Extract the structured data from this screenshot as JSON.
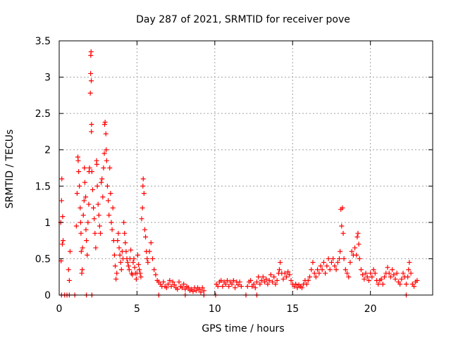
{
  "chart_data": {
    "type": "scatter",
    "title": "Day 287 of 2021, SRMTID for receiver pove",
    "xlabel": "GPS time / hours",
    "ylabel": "SRMTID / TECUs",
    "xlim": [
      0,
      24
    ],
    "ylim": [
      0,
      3.5
    ],
    "xticks": [
      {
        "value": 0,
        "label": "0"
      },
      {
        "value": 5,
        "label": "5"
      },
      {
        "value": 10,
        "label": "10"
      },
      {
        "value": 15,
        "label": "15"
      },
      {
        "value": 20,
        "label": "20"
      }
    ],
    "yticks": [
      {
        "value": 0,
        "label": "0"
      },
      {
        "value": 0.5,
        "label": "0.5"
      },
      {
        "value": 1,
        "label": "1"
      },
      {
        "value": 1.5,
        "label": "1.5"
      },
      {
        "value": 2,
        "label": "2"
      },
      {
        "value": 2.5,
        "label": "2.5"
      },
      {
        "value": 3,
        "label": "3"
      },
      {
        "value": 3.5,
        "label": "3.5"
      }
    ],
    "grid": true,
    "marker": "plus",
    "color": "#ff0000",
    "series": [
      {
        "name": "SRMTID",
        "points": [
          [
            0.1,
            1.0
          ],
          [
            0.12,
            0.47
          ],
          [
            0.15,
            1.3
          ],
          [
            0.17,
            1.6
          ],
          [
            0.2,
            0.7
          ],
          [
            0.22,
            1.08
          ],
          [
            0.25,
            0.75
          ],
          [
            0.6,
            0.35
          ],
          [
            0.65,
            0.2
          ],
          [
            0.7,
            0.6
          ],
          [
            1.1,
            0.95
          ],
          [
            1.15,
            1.4
          ],
          [
            1.2,
            1.9
          ],
          [
            1.22,
            1.85
          ],
          [
            1.25,
            1.7
          ],
          [
            1.3,
            1.5
          ],
          [
            1.35,
            1.2
          ],
          [
            1.38,
            1.0
          ],
          [
            1.4,
            0.85
          ],
          [
            1.42,
            0.6
          ],
          [
            1.45,
            0.3
          ],
          [
            1.48,
            0.35
          ],
          [
            1.5,
            0.65
          ],
          [
            1.55,
            1.1
          ],
          [
            1.6,
            1.3
          ],
          [
            1.62,
            1.75
          ],
          [
            1.65,
            1.55
          ],
          [
            1.7,
            1.35
          ],
          [
            1.72,
            0.9
          ],
          [
            1.75,
            0.75
          ],
          [
            1.8,
            0.55
          ],
          [
            1.85,
            1.0
          ],
          [
            1.9,
            1.25
          ],
          [
            1.92,
            1.7
          ],
          [
            1.95,
            1.75
          ],
          [
            2.0,
            2.78
          ],
          [
            2.02,
            3.05
          ],
          [
            2.03,
            3.3
          ],
          [
            2.05,
            3.35
          ],
          [
            2.06,
            2.95
          ],
          [
            2.07,
            2.25
          ],
          [
            2.08,
            2.35
          ],
          [
            2.1,
            1.7
          ],
          [
            2.15,
            1.45
          ],
          [
            2.2,
            1.2
          ],
          [
            2.25,
            1.05
          ],
          [
            2.3,
            0.85
          ],
          [
            2.35,
            0.65
          ],
          [
            2.4,
            1.85
          ],
          [
            2.42,
            1.8
          ],
          [
            2.45,
            1.5
          ],
          [
            2.5,
            1.25
          ],
          [
            2.55,
            1.1
          ],
          [
            2.6,
            0.95
          ],
          [
            2.65,
            0.85
          ],
          [
            2.7,
            1.55
          ],
          [
            2.75,
            1.6
          ],
          [
            2.8,
            1.35
          ],
          [
            2.85,
            1.75
          ],
          [
            2.9,
            1.95
          ],
          [
            2.92,
            2.35
          ],
          [
            2.95,
            2.38
          ],
          [
            3.0,
            2.22
          ],
          [
            3.02,
            2.0
          ],
          [
            3.05,
            1.85
          ],
          [
            3.1,
            1.5
          ],
          [
            3.15,
            1.3
          ],
          [
            3.2,
            1.1
          ],
          [
            3.25,
            1.75
          ],
          [
            3.3,
            1.4
          ],
          [
            3.35,
            1.0
          ],
          [
            3.4,
            0.9
          ],
          [
            3.45,
            1.2
          ],
          [
            3.5,
            0.75
          ],
          [
            3.55,
            0.55
          ],
          [
            3.6,
            0.4
          ],
          [
            3.65,
            0.22
          ],
          [
            3.7,
            0.3
          ],
          [
            3.75,
            0.75
          ],
          [
            3.8,
            0.85
          ],
          [
            3.85,
            0.65
          ],
          [
            3.9,
            0.55
          ],
          [
            3.95,
            0.45
          ],
          [
            4.0,
            0.35
          ],
          [
            4.05,
            0.6
          ],
          [
            4.1,
            0.5
          ],
          [
            4.15,
            1.0
          ],
          [
            4.2,
            0.85
          ],
          [
            4.25,
            0.72
          ],
          [
            4.3,
            0.6
          ],
          [
            4.35,
            0.5
          ],
          [
            4.4,
            0.45
          ],
          [
            4.45,
            0.4
          ],
          [
            4.5,
            0.35
          ],
          [
            4.55,
            0.5
          ],
          [
            4.6,
            0.62
          ],
          [
            4.65,
            0.3
          ],
          [
            4.7,
            0.28
          ],
          [
            4.75,
            0.45
          ],
          [
            4.8,
            0.5
          ],
          [
            4.85,
            0.38
          ],
          [
            4.9,
            0.3
          ],
          [
            4.95,
            0.22
          ],
          [
            5.0,
            0.3
          ],
          [
            5.05,
            0.55
          ],
          [
            5.1,
            0.42
          ],
          [
            5.15,
            0.35
          ],
          [
            5.2,
            0.3
          ],
          [
            5.25,
            0.25
          ],
          [
            5.3,
            1.05
          ],
          [
            5.35,
            1.2
          ],
          [
            5.38,
            1.5
          ],
          [
            5.4,
            1.6
          ],
          [
            5.45,
            1.4
          ],
          [
            5.5,
            0.9
          ],
          [
            5.55,
            0.8
          ],
          [
            5.6,
            0.6
          ],
          [
            5.65,
            0.5
          ],
          [
            5.7,
            0.45
          ],
          [
            5.8,
            0.6
          ],
          [
            5.9,
            0.72
          ],
          [
            6.0,
            0.5
          ],
          [
            6.1,
            0.35
          ],
          [
            6.2,
            0.28
          ],
          [
            6.3,
            0.2
          ],
          [
            6.4,
            0.18
          ],
          [
            6.5,
            0.15
          ],
          [
            6.6,
            0.12
          ],
          [
            6.7,
            0.18
          ],
          [
            6.8,
            0.12
          ],
          [
            6.9,
            0.1
          ],
          [
            7.0,
            0.15
          ],
          [
            7.1,
            0.2
          ],
          [
            7.2,
            0.12
          ],
          [
            7.3,
            0.18
          ],
          [
            7.4,
            0.14
          ],
          [
            7.5,
            0.1
          ],
          [
            7.6,
            0.08
          ],
          [
            7.7,
            0.18
          ],
          [
            7.8,
            0.12
          ],
          [
            7.9,
            0.1
          ],
          [
            8.0,
            0.15
          ],
          [
            8.1,
            0.08
          ],
          [
            8.2,
            0.12
          ],
          [
            8.3,
            0.1
          ],
          [
            8.4,
            0.06
          ],
          [
            8.5,
            0.08
          ],
          [
            8.6,
            0.05
          ],
          [
            8.7,
            0.1
          ],
          [
            8.8,
            0.06
          ],
          [
            8.9,
            0.1
          ],
          [
            9.0,
            0.08
          ],
          [
            9.1,
            0.04
          ],
          [
            9.2,
            0.1
          ],
          [
            9.3,
            0.06
          ],
          [
            10.1,
            0.15
          ],
          [
            10.2,
            0.12
          ],
          [
            10.3,
            0.18
          ],
          [
            10.4,
            0.2
          ],
          [
            10.5,
            0.12
          ],
          [
            10.6,
            0.18
          ],
          [
            10.7,
            0.15
          ],
          [
            10.8,
            0.2
          ],
          [
            10.9,
            0.12
          ],
          [
            11.0,
            0.18
          ],
          [
            11.1,
            0.15
          ],
          [
            11.2,
            0.2
          ],
          [
            11.3,
            0.1
          ],
          [
            11.4,
            0.18
          ],
          [
            11.5,
            0.14
          ],
          [
            11.6,
            0.18
          ],
          [
            11.7,
            0.12
          ],
          [
            12.1,
            0.12
          ],
          [
            12.2,
            0.18
          ],
          [
            12.3,
            0.2
          ],
          [
            12.4,
            0.12
          ],
          [
            12.5,
            0.15
          ],
          [
            12.6,
            0.1
          ],
          [
            12.7,
            0.18
          ],
          [
            12.8,
            0.25
          ],
          [
            12.9,
            0.15
          ],
          [
            13.0,
            0.2
          ],
          [
            13.1,
            0.25
          ],
          [
            13.2,
            0.18
          ],
          [
            13.3,
            0.22
          ],
          [
            13.4,
            0.15
          ],
          [
            13.5,
            0.2
          ],
          [
            13.6,
            0.28
          ],
          [
            13.7,
            0.18
          ],
          [
            13.8,
            0.25
          ],
          [
            13.9,
            0.15
          ],
          [
            14.0,
            0.2
          ],
          [
            14.1,
            0.3
          ],
          [
            14.15,
            0.35
          ],
          [
            14.2,
            0.45
          ],
          [
            14.3,
            0.3
          ],
          [
            14.4,
            0.22
          ],
          [
            14.5,
            0.3
          ],
          [
            14.6,
            0.25
          ],
          [
            14.7,
            0.32
          ],
          [
            14.8,
            0.28
          ],
          [
            14.9,
            0.2
          ],
          [
            15.0,
            0.15
          ],
          [
            15.1,
            0.12
          ],
          [
            15.2,
            0.15
          ],
          [
            15.3,
            0.1
          ],
          [
            15.4,
            0.14
          ],
          [
            15.5,
            0.12
          ],
          [
            15.6,
            0.1
          ],
          [
            15.7,
            0.15
          ],
          [
            15.8,
            0.2
          ],
          [
            15.9,
            0.15
          ],
          [
            16.0,
            0.2
          ],
          [
            16.1,
            0.25
          ],
          [
            16.2,
            0.35
          ],
          [
            16.3,
            0.45
          ],
          [
            16.4,
            0.3
          ],
          [
            16.5,
            0.25
          ],
          [
            16.6,
            0.35
          ],
          [
            16.7,
            0.3
          ],
          [
            16.8,
            0.4
          ],
          [
            16.9,
            0.35
          ],
          [
            17.0,
            0.45
          ],
          [
            17.1,
            0.3
          ],
          [
            17.2,
            0.4
          ],
          [
            17.3,
            0.5
          ],
          [
            17.4,
            0.35
          ],
          [
            17.5,
            0.45
          ],
          [
            17.6,
            0.5
          ],
          [
            17.7,
            0.4
          ],
          [
            17.8,
            0.35
          ],
          [
            17.9,
            0.45
          ],
          [
            18.0,
            0.5
          ],
          [
            18.05,
            0.6
          ],
          [
            18.1,
            1.18
          ],
          [
            18.15,
            0.95
          ],
          [
            18.2,
            1.2
          ],
          [
            18.25,
            0.85
          ],
          [
            18.3,
            0.5
          ],
          [
            18.4,
            0.35
          ],
          [
            18.5,
            0.3
          ],
          [
            18.6,
            0.25
          ],
          [
            18.7,
            0.45
          ],
          [
            18.8,
            0.6
          ],
          [
            18.9,
            0.55
          ],
          [
            19.0,
            0.65
          ],
          [
            19.1,
            0.55
          ],
          [
            19.15,
            0.8
          ],
          [
            19.2,
            0.85
          ],
          [
            19.25,
            0.7
          ],
          [
            19.3,
            0.5
          ],
          [
            19.4,
            0.35
          ],
          [
            19.5,
            0.28
          ],
          [
            19.6,
            0.22
          ],
          [
            19.7,
            0.3
          ],
          [
            19.8,
            0.25
          ],
          [
            19.9,
            0.2
          ],
          [
            20.0,
            0.3
          ],
          [
            20.1,
            0.25
          ],
          [
            20.2,
            0.35
          ],
          [
            20.3,
            0.3
          ],
          [
            20.4,
            0.2
          ],
          [
            20.5,
            0.15
          ],
          [
            20.6,
            0.2
          ],
          [
            20.7,
            0.22
          ],
          [
            20.8,
            0.15
          ],
          [
            20.9,
            0.25
          ],
          [
            21.0,
            0.3
          ],
          [
            21.1,
            0.38
          ],
          [
            21.2,
            0.3
          ],
          [
            21.3,
            0.25
          ],
          [
            21.4,
            0.35
          ],
          [
            21.5,
            0.28
          ],
          [
            21.6,
            0.22
          ],
          [
            21.7,
            0.3
          ],
          [
            21.8,
            0.18
          ],
          [
            21.9,
            0.15
          ],
          [
            22.0,
            0.22
          ],
          [
            22.1,
            0.3
          ],
          [
            22.2,
            0.25
          ],
          [
            22.3,
            0.15
          ],
          [
            22.4,
            0.25
          ],
          [
            22.45,
            0.35
          ],
          [
            22.5,
            0.45
          ],
          [
            22.6,
            0.3
          ],
          [
            22.7,
            0.15
          ],
          [
            22.8,
            0.12
          ],
          [
            22.9,
            0.18
          ],
          [
            23.0,
            0.2
          ],
          [
            0.15,
            0
          ],
          [
            0.35,
            0
          ],
          [
            0.5,
            0
          ],
          [
            0.65,
            0
          ],
          [
            1.0,
            0
          ],
          [
            1.75,
            0
          ],
          [
            2.1,
            0
          ],
          [
            6.4,
            0
          ],
          [
            8.1,
            0
          ],
          [
            9.3,
            0
          ],
          [
            10.05,
            0
          ],
          [
            12.0,
            0
          ],
          [
            12.7,
            0
          ],
          [
            22.3,
            0
          ]
        ]
      }
    ]
  }
}
